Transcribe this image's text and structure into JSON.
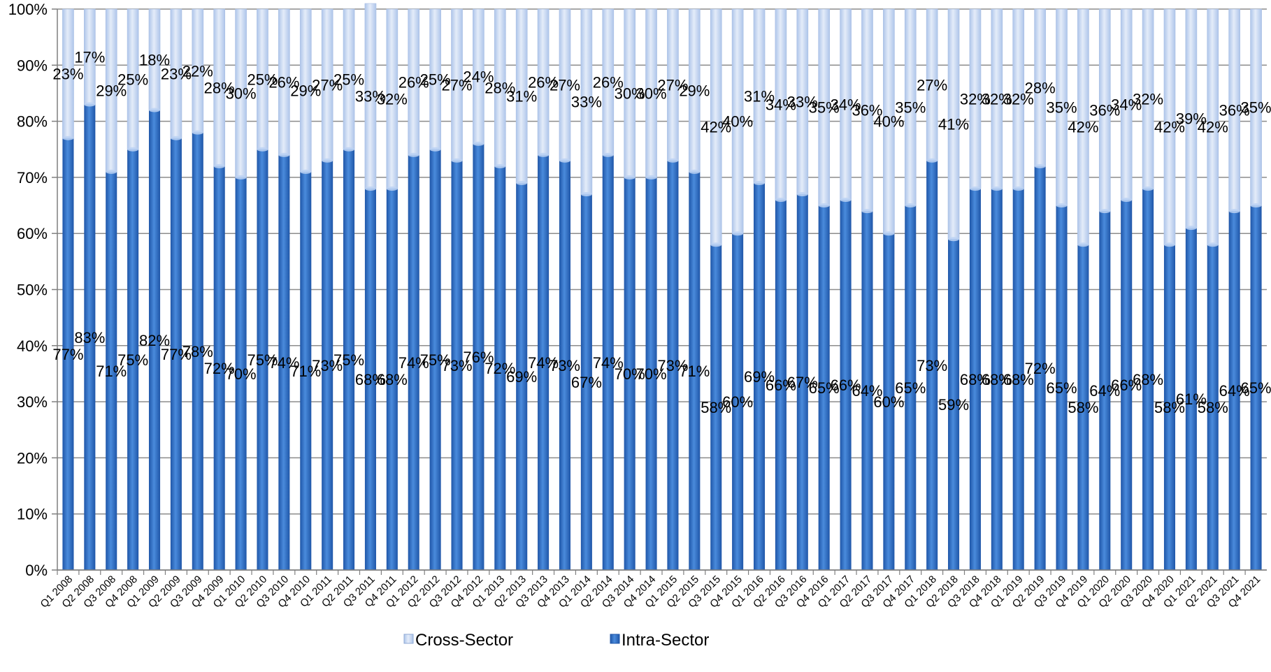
{
  "chart_data": {
    "type": "bar",
    "stacked": true,
    "title": "",
    "xlabel": "",
    "ylabel": "",
    "ylim": [
      0,
      100
    ],
    "y_ticks": [
      "0%",
      "10%",
      "20%",
      "30%",
      "40%",
      "50%",
      "60%",
      "70%",
      "80%",
      "90%",
      "100%"
    ],
    "grid": true,
    "legend_position": "bottom",
    "categories": [
      "Q1 2008",
      "Q2 2008",
      "Q3 2008",
      "Q4 2008",
      "Q1 2009",
      "Q2 2009",
      "Q3 2009",
      "Q4 2009",
      "Q1 2010",
      "Q2 2010",
      "Q3 2010",
      "Q4 2010",
      "Q1 2011",
      "Q2 2011",
      "Q3 2011",
      "Q4 2011",
      "Q1 2012",
      "Q2 2012",
      "Q3 2012",
      "Q4 2012",
      "Q1 2013",
      "Q2 2013",
      "Q3 2013",
      "Q4 2013",
      "Q1 2014",
      "Q2 2014",
      "Q3 2014",
      "Q4 2014",
      "Q1 2015",
      "Q2 2015",
      "Q3 2015",
      "Q4 2015",
      "Q1 2016",
      "Q2 2016",
      "Q3 2016",
      "Q4 2016",
      "Q1 2017",
      "Q2 2017",
      "Q3 2017",
      "Q4 2017",
      "Q1 2018",
      "Q2 2018",
      "Q3 2018",
      "Q4 2018",
      "Q1 2019",
      "Q2 2019",
      "Q3 2019",
      "Q4 2019",
      "Q1 2020",
      "Q2 2020",
      "Q3 2020",
      "Q4 2020",
      "Q1 2021",
      "Q2 2021",
      "Q3 2021",
      "Q4 2021"
    ],
    "series": [
      {
        "name": "Intra-Sector",
        "color": "#2f6fc4",
        "values": [
          77,
          83,
          71,
          75,
          82,
          77,
          78,
          72,
          70,
          75,
          74,
          71,
          73,
          75,
          68,
          68,
          74,
          75,
          73,
          76,
          72,
          69,
          74,
          73,
          67,
          74,
          70,
          70,
          73,
          71,
          58,
          60,
          69,
          66,
          67,
          65,
          66,
          64,
          60,
          65,
          73,
          59,
          68,
          68,
          68,
          72,
          65,
          58,
          64,
          66,
          68,
          58,
          61,
          58,
          64,
          65
        ]
      },
      {
        "name": "Cross-Sector",
        "color": "#c6d7f1",
        "values": [
          23,
          17,
          29,
          25,
          18,
          23,
          22,
          28,
          30,
          25,
          26,
          29,
          27,
          25,
          33,
          32,
          26,
          25,
          27,
          24,
          28,
          31,
          26,
          27,
          33,
          26,
          30,
          30,
          27,
          29,
          42,
          40,
          31,
          34,
          33,
          35,
          34,
          36,
          40,
          35,
          27,
          41,
          32,
          32,
          32,
          28,
          35,
          42,
          36,
          34,
          32,
          42,
          39,
          42,
          36,
          35
        ]
      }
    ],
    "legend": [
      "Cross-Sector",
      "Intra-Sector"
    ]
  }
}
